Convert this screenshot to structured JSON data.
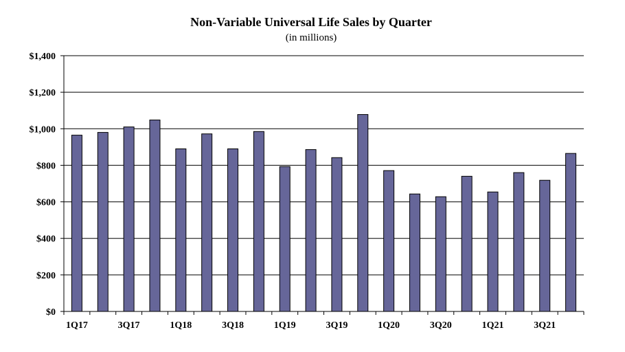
{
  "chart_data": {
    "type": "bar",
    "title": "Non-Variable Universal Life Sales by Quarter",
    "subtitle": "(in millions)",
    "xlabel": "",
    "ylabel": "",
    "ylim": [
      0,
      1400
    ],
    "ytick_step": 200,
    "ytick_labels": [
      "$0",
      "$200",
      "$400",
      "$600",
      "$800",
      "$1,000",
      "$1,200",
      "$1,400"
    ],
    "grid": true,
    "categories": [
      "1Q17",
      "2Q17",
      "3Q17",
      "4Q17",
      "1Q18",
      "2Q18",
      "3Q18",
      "4Q18",
      "1Q19",
      "2Q19",
      "3Q19",
      "4Q19",
      "1Q20",
      "2Q20",
      "3Q20",
      "4Q20",
      "1Q21",
      "2Q21",
      "3Q21",
      "4Q21"
    ],
    "xtick_labels": [
      "1Q17",
      "",
      "3Q17",
      "",
      "1Q18",
      "",
      "3Q18",
      "",
      "1Q19",
      "",
      "3Q19",
      "",
      "1Q20",
      "",
      "3Q20",
      "",
      "1Q21",
      "",
      "3Q21",
      ""
    ],
    "values": [
      965,
      980,
      1010,
      1048,
      890,
      972,
      890,
      985,
      793,
      886,
      842,
      1078,
      771,
      643,
      628,
      740,
      654,
      760,
      718,
      865
    ],
    "colors": {
      "bar": "#666699",
      "grid": "#000000"
    }
  }
}
